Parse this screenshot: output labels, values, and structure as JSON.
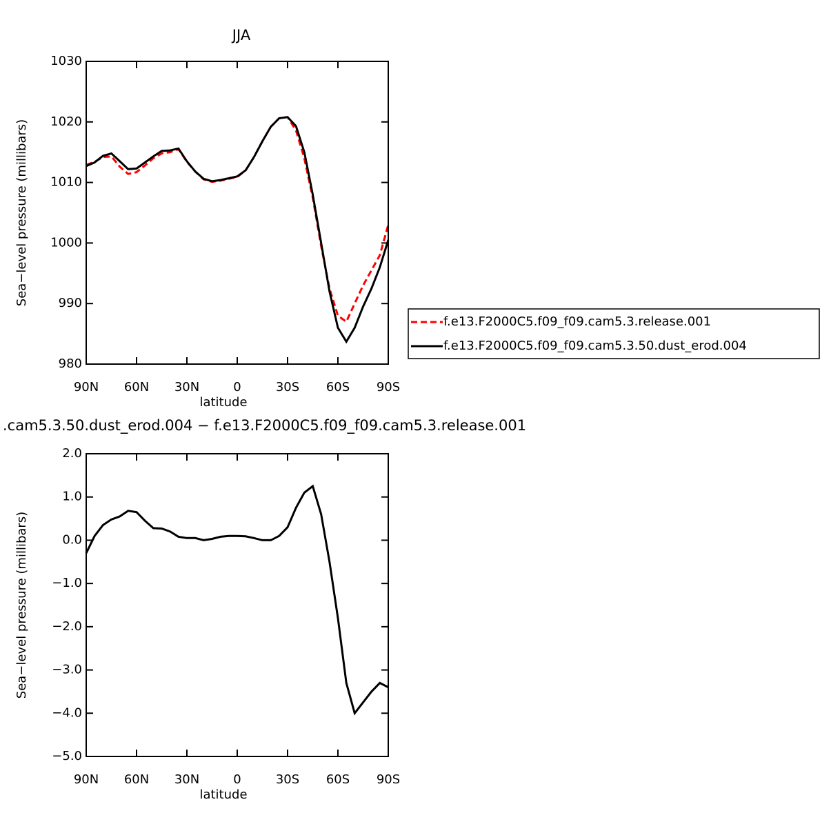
{
  "chart_data": [
    {
      "type": "line",
      "title": "JJA",
      "xlabel": "latitude",
      "ylabel": "Sea−level pressure (millibars)",
      "x": [
        90,
        85,
        80,
        75,
        70,
        65,
        60,
        55,
        50,
        45,
        40,
        35,
        30,
        25,
        20,
        15,
        10,
        5,
        0,
        -5,
        -10,
        -15,
        -20,
        -25,
        -30,
        -35,
        -40,
        -45,
        -50,
        -55,
        -60,
        -65,
        -70,
        -75,
        -80,
        -85,
        -90
      ],
      "series": [
        {
          "name": "f.e13.F2000C5.f09_f09.cam5.3.release.001",
          "color": "#ff0000",
          "style": "dashed",
          "values": [
            1012.9,
            1013.4,
            1014.2,
            1014.3,
            1012.6,
            1011.4,
            1011.7,
            1012.8,
            1014.0,
            1014.8,
            1015.0,
            1015.5,
            1013.4,
            1011.8,
            1010.5,
            1010.1,
            1010.3,
            1010.6,
            1010.9,
            1012.0,
            1014.2,
            1016.8,
            1019.2,
            1020.6,
            1020.8,
            1018.6,
            1014.0,
            1007.5,
            999.5,
            992.5,
            988.0,
            987.0,
            990.0,
            993.0,
            995.5,
            998.0,
            1003.0
          ]
        },
        {
          "name": "f.e13.F2000C5.f09_f09.cam5.3.50.dust_erod.004",
          "color": "#000000",
          "style": "solid",
          "values": [
            1012.7,
            1013.3,
            1014.4,
            1014.8,
            1013.5,
            1012.2,
            1012.3,
            1013.3,
            1014.3,
            1015.2,
            1015.3,
            1015.6,
            1013.5,
            1011.8,
            1010.6,
            1010.2,
            1010.4,
            1010.7,
            1011.0,
            1012.0,
            1014.2,
            1016.8,
            1019.2,
            1020.6,
            1020.8,
            1019.3,
            1015.0,
            1008.0,
            1000.0,
            992.0,
            986.0,
            983.7,
            986.0,
            989.5,
            992.5,
            996.0,
            1000.5
          ]
        }
      ],
      "xlim": [
        90,
        -90
      ],
      "xticks": [
        {
          "value": 90,
          "label": "90N"
        },
        {
          "value": 60,
          "label": "60N"
        },
        {
          "value": 30,
          "label": "30N"
        },
        0,
        {
          "value": -30,
          "label": "30S"
        },
        {
          "value": -60,
          "label": "60S"
        },
        {
          "value": -90,
          "label": "90S"
        }
      ],
      "ylim": [
        980,
        1030
      ],
      "yticks": [
        980,
        990,
        1000,
        1010,
        1020,
        1030
      ],
      "legend": "right"
    },
    {
      "type": "line",
      "title": ".cam5.3.50.dust_erod.004 − f.e13.F2000C5.f09_f09.cam5.3.release.001",
      "xlabel": "latitude",
      "ylabel": "Sea−level pressure (millibars)",
      "x": [
        90,
        85,
        80,
        75,
        70,
        65,
        60,
        55,
        50,
        45,
        40,
        35,
        30,
        25,
        20,
        15,
        10,
        5,
        0,
        -5,
        -10,
        -15,
        -20,
        -25,
        -30,
        -35,
        -40,
        -45,
        -50,
        -55,
        -60,
        -65,
        -70,
        -75,
        -80,
        -85,
        -90
      ],
      "color": "#000000",
      "values": [
        -0.3,
        0.1,
        0.35,
        0.48,
        0.55,
        0.68,
        0.65,
        0.45,
        0.28,
        0.27,
        0.2,
        0.08,
        0.05,
        0.05,
        0.0,
        0.03,
        0.08,
        0.1,
        0.1,
        0.09,
        0.05,
        0.0,
        0.0,
        0.1,
        0.3,
        0.75,
        1.1,
        1.25,
        0.6,
        -0.5,
        -1.8,
        -3.3,
        -4.0,
        -3.75,
        -3.5,
        -3.3,
        -3.4
      ],
      "xlim": [
        90,
        -90
      ],
      "xticks": [
        {
          "value": 90,
          "label": "90N"
        },
        {
          "value": 60,
          "label": "60N"
        },
        {
          "value": 30,
          "label": "30N"
        },
        0,
        {
          "value": -30,
          "label": "30S"
        },
        {
          "value": -60,
          "label": "60S"
        },
        {
          "value": -90,
          "label": "90S"
        }
      ],
      "ylim": [
        -5,
        2
      ],
      "yticks": [
        {
          "value": -5,
          "label": "−5.0"
        },
        {
          "value": -4,
          "label": "−4.0"
        },
        {
          "value": -3,
          "label": "−3.0"
        },
        {
          "value": -2,
          "label": "−2.0"
        },
        {
          "value": -1,
          "label": "−1.0"
        },
        {
          "value": 0,
          "label": "0.0"
        },
        {
          "value": 1,
          "label": "1.0"
        },
        {
          "value": 2,
          "label": "2.0"
        }
      ]
    }
  ]
}
